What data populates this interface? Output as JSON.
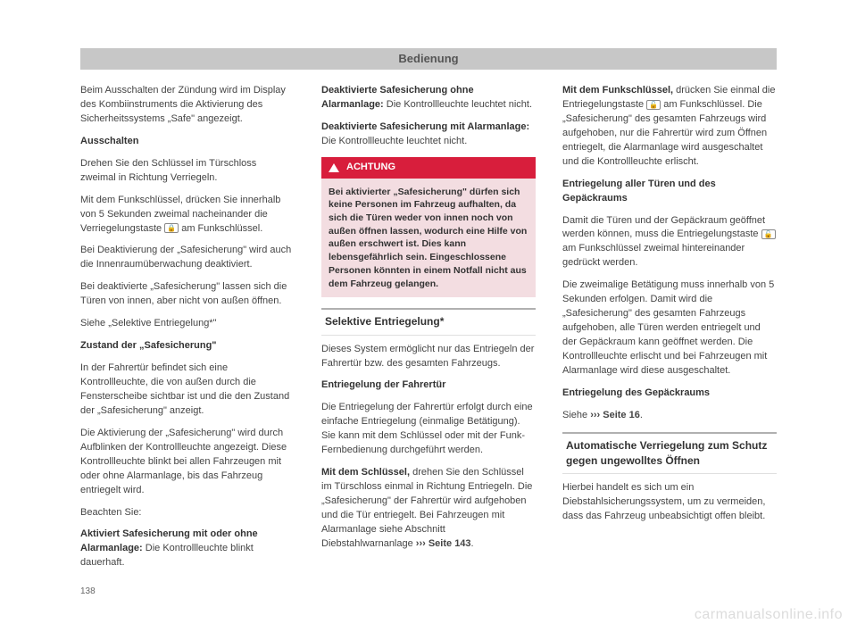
{
  "header": {
    "title": "Bedienung"
  },
  "page_number": "138",
  "watermark": "carmanualsonline.info",
  "warning": {
    "label": "ACHTUNG",
    "body": "Bei aktivierter „Safesicherung\" dürfen sich keine Personen im Fahrzeug aufhalten, da sich die Türen weder von innen noch von außen öffnen lassen, wodurch eine Hilfe von außen erschwert ist. Dies kann lebensgefährlich sein. Eingeschlossene Personen könnten in einem Notfall nicht aus dem Fahrzeug gelangen."
  },
  "col1": {
    "p1": "Beim Ausschalten der Zündung wird im Display des Kombiinstruments die Aktivierung des Sicherheitssystems „Safe\" angezeigt.",
    "h1": "Ausschalten",
    "p2": "Drehen Sie den Schlüssel im Türschloss zweimal in Richtung Verriegeln.",
    "p3a": "Mit dem Funkschlüssel, drücken Sie innerhalb von 5 Sekunden zweimal nacheinander die Verriegelungstaste ",
    "p3b": " am Funkschlüssel.",
    "p4": "Bei Deaktivierung der „Safesicherung\" wird auch die Innenraumüberwachung deaktiviert.",
    "p5": "Bei deaktivierte „Safesicherung\" lassen sich die Türen von innen, aber nicht von außen öffnen.",
    "p6": "Siehe „Selektive Entriegelung*\"",
    "h2": "Zustand der „Safesicherung\"",
    "p7": "In der Fahrertür befindet sich eine Kontrollleuchte, die von außen durch die Fensterscheibe sichtbar ist und die den Zustand der „Safesicherung\" anzeigt.",
    "p8": "Die Aktivierung der „Safesicherung\" wird durch Aufblinken der Kontrollleuchte angezeigt. Diese Kontrollleuchte blinkt bei allen Fahrzeugen mit oder ohne Alarmanlage, bis das Fahrzeug entriegelt wird.",
    "p9": "Beachten Sie:",
    "p10_label": "Aktiviert Safesicherung mit oder ohne Alarmanlage:",
    "p10_body": " Die Kontrollleuchte blinkt dauerhaft."
  },
  "col2": {
    "p1_label": "Deaktivierte Safesicherung ohne Alarmanlage:",
    "p1_body": " Die Kontrollleuchte leuchtet nicht.",
    "p2_label": "Deaktivierte Safesicherung mit Alarmanlage:",
    "p2_body": "Die Kontrollleuchte leuchtet nicht.",
    "section1": "Selektive Entriegelung*",
    "p3": "Dieses System ermöglicht nur das Entriegeln der Fahrertür bzw. des gesamten Fahrzeugs.",
    "h1": "Entriegelung der Fahrertür",
    "p4": "Die Entriegelung der Fahrertür erfolgt durch eine einfache Entriegelung (einmalige Betätigung). Sie kann mit dem Schlüssel oder mit der Funk-Fernbedienung durchgeführt werden.",
    "p5_label": "Mit dem Schlüssel,",
    "p5_body": " drehen Sie den Schlüssel im Türschloss einmal in Richtung Entriegeln. Die „Safesicherung\" der Fahrertür wird aufgehoben und die Tür entriegelt. Bei Fahrzeugen mit Alarmanlage siehe Abschnitt Diebstahlwarnanlage ",
    "p5_ref": "››› Seite 143",
    "p5_end": "."
  },
  "col3": {
    "p1_label": "Mit dem Funkschlüssel,",
    "p1_body1": " drücken Sie einmal die Entriegelungstaste ",
    "p1_body2": " am Funkschlüssel. Die „Safesicherung\" des gesamten Fahrzeugs wird aufgehoben, nur die Fahrertür wird zum Öffnen entriegelt, die Alarmanlage wird ausgeschaltet und die Kontrollleuchte erlischt.",
    "h1": "Entriegelung aller Türen und des Gepäckraums",
    "p2a": "Damit die Türen und der Gepäckraum geöffnet werden können, muss die Entriegelungstaste ",
    "p2b": " am Funkschlüssel zweimal hintereinander gedrückt werden.",
    "p3": "Die zweimalige Betätigung muss innerhalb von 5 Sekunden erfolgen. Damit wird die „Safesicherung\" des gesamten Fahrzeugs aufgehoben, alle Türen werden entriegelt und der Gepäckraum kann geöffnet werden. Die Kontrollleuchte erlischt und bei Fahrzeugen mit Alarmanlage wird diese ausgeschaltet.",
    "h2": "Entriegelung des Gepäckraums",
    "p4a": "Siehe ",
    "p4_ref": "›››  Seite 16",
    "p4b": ".",
    "section1": "Automatische Verriegelung zum Schutz gegen ungewolltes Öffnen",
    "p5": "Hierbei handelt es sich um ein Diebstahlsicherungssystem, um zu vermeiden, dass das Fahrzeug unbeabsichtigt offen bleibt."
  }
}
